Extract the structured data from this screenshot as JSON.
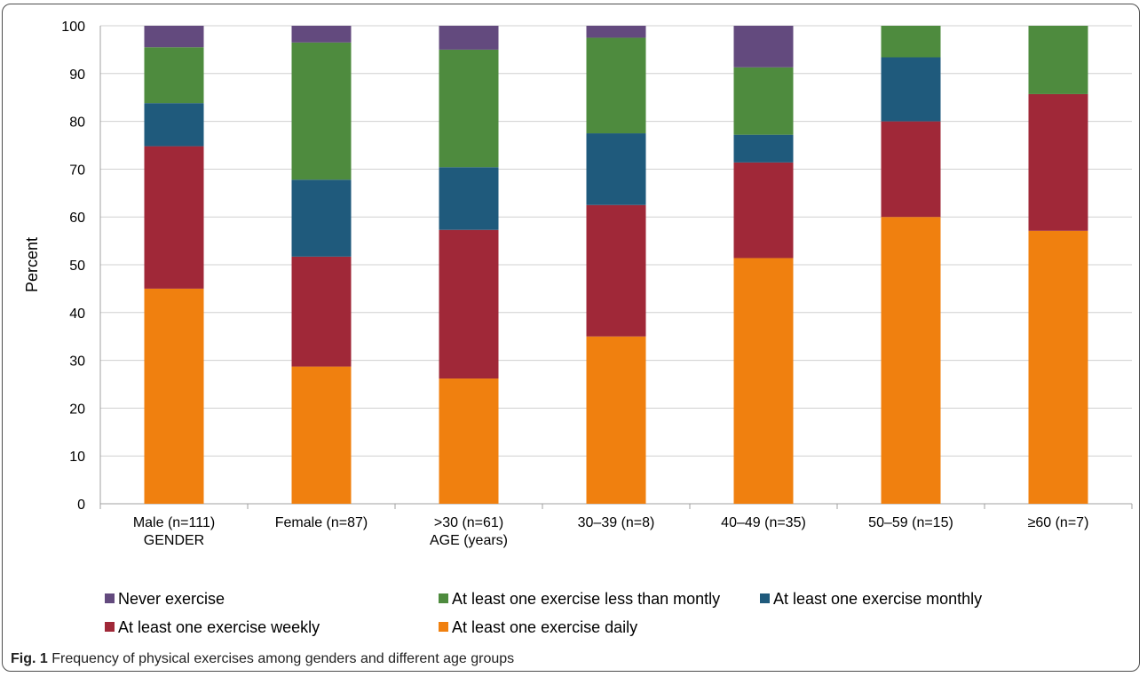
{
  "figure": {
    "caption_label": "Fig. 1",
    "caption_text": "Frequency of physical exercises among genders and different age groups"
  },
  "chart_data": {
    "type": "bar",
    "stacked": true,
    "ylabel": "Percent",
    "ylim": [
      0,
      100
    ],
    "yticks": [
      0,
      10,
      20,
      30,
      40,
      50,
      60,
      70,
      80,
      90,
      100
    ],
    "grid": true,
    "legend_position": "bottom",
    "categories": [
      [
        "Male (n=111)",
        "GENDER"
      ],
      [
        "Female (n=87)"
      ],
      [
        ">30 (n=61)",
        "AGE (years)"
      ],
      [
        "30–39 (n=8)"
      ],
      [
        "40–49 (n=35)"
      ],
      [
        "50–59  (n=15)"
      ],
      [
        "≥60  (n=7)"
      ]
    ],
    "series": [
      {
        "name": "At least one exercise daily",
        "color": "#F0800F",
        "values": [
          45,
          28.7,
          26.2,
          35,
          51.4,
          60,
          57.1
        ]
      },
      {
        "name": "At least one exercise weekly",
        "color": "#A02838",
        "values": [
          29.8,
          23.0,
          31.1,
          27.5,
          20,
          20,
          28.6
        ]
      },
      {
        "name": "At least one exercise monthly",
        "color": "#1F5A7C",
        "values": [
          9.0,
          16.1,
          13.1,
          15,
          5.8,
          13.4,
          0
        ]
      },
      {
        "name": "At least one exercise less than montly",
        "color": "#4E8B3E",
        "values": [
          11.7,
          28.7,
          24.6,
          20,
          14.1,
          6.6,
          14.3
        ]
      },
      {
        "name": "Never exercise",
        "color": "#634A7E",
        "values": [
          4.5,
          3.5,
          5.0,
          2.5,
          8.7,
          0,
          0
        ]
      }
    ],
    "legend_rows": [
      [
        "Never exercise",
        "At least one exercise less than montly",
        "At least one exercise monthly"
      ],
      [
        "At least one exercise weekly",
        "At least one exercise daily"
      ]
    ]
  }
}
